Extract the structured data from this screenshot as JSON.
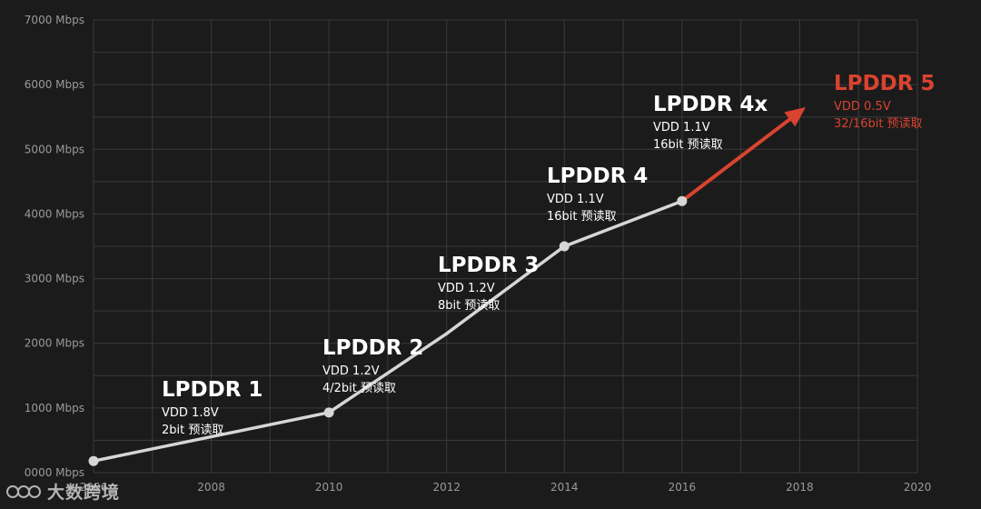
{
  "chart_data": {
    "type": "line",
    "x_ticks": [
      "2006",
      "2008",
      "2010",
      "2012",
      "2014",
      "2016",
      "2018",
      "2020"
    ],
    "y_ticks": [
      "0000 Mbps",
      "1000 Mbps",
      "2000 Mbps",
      "3000 Mbps",
      "4000 Mbps",
      "5000 Mbps",
      "6000 Mbps",
      "7000 Mbps"
    ],
    "xlim": [
      2006,
      2020
    ],
    "ylim": [
      0,
      7000
    ],
    "grid": true,
    "points": [
      {
        "x": 2006,
        "y": 180
      },
      {
        "x": 2010,
        "y": 930
      },
      {
        "x": 2012,
        "y": 2150
      },
      {
        "x": 2014,
        "y": 3500
      },
      {
        "x": 2016,
        "y": 4200
      }
    ],
    "projection": {
      "from": {
        "x": 2016,
        "y": 4200
      },
      "to": {
        "x": 2018.1,
        "y": 5650
      }
    },
    "line_color": "#d6d6d6",
    "projection_color": "#d9432f",
    "annotations": [
      {
        "name": "LPDDR 1",
        "vdd": "VDD 1.8V",
        "prefetch": "2bit 预读取",
        "future": false
      },
      {
        "name": "LPDDR 2",
        "vdd": "VDD 1.2V",
        "prefetch": "4/2bit 预读取",
        "future": false
      },
      {
        "name": "LPDDR 3",
        "vdd": "VDD 1.2V",
        "prefetch": "8bit 预读取",
        "future": false
      },
      {
        "name": "LPDDR 4",
        "vdd": "VDD 1.1V",
        "prefetch": "16bit 预读取",
        "future": false
      },
      {
        "name": "LPDDR 4x",
        "vdd": "VDD 1.1V",
        "prefetch": "16bit 预读取",
        "future": false
      },
      {
        "name": "LPDDR 5",
        "vdd": "VDD 0.5V",
        "prefetch": "32/16bit 预读取",
        "future": true
      }
    ]
  },
  "watermark": {
    "text": "大数跨境"
  }
}
